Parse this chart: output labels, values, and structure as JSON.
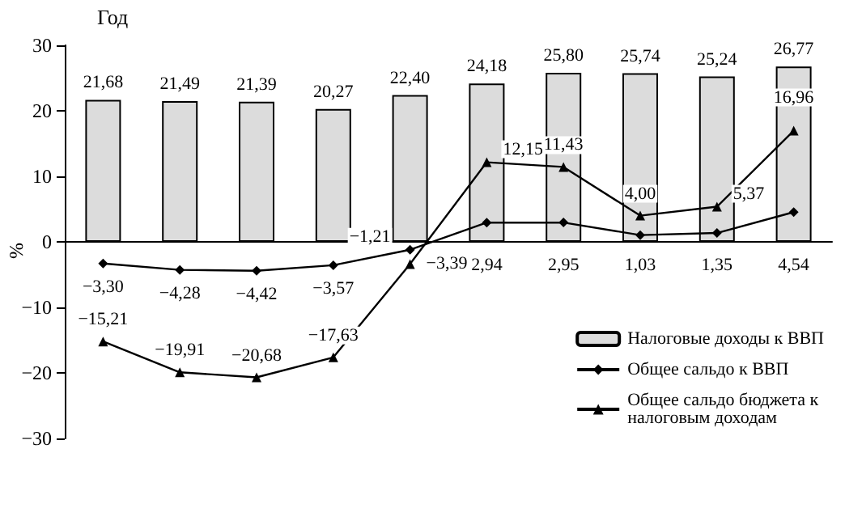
{
  "chart_data": {
    "type": "bar",
    "xlabel": "Год",
    "ylabel": "%",
    "categories": [
      null,
      null,
      null,
      null,
      null,
      null,
      null,
      null,
      null,
      null
    ],
    "series": [
      {
        "name": "Налоговые доходы к ВВП",
        "color": "#dcdcdc",
        "values": [
          21.68,
          21.49,
          21.39,
          20.27,
          22.4,
          24.18,
          25.8,
          25.74,
          25.24,
          26.77
        ],
        "value_labels": [
          "21,68",
          "21,49",
          "21,39",
          "20,27",
          "22,40",
          "24,18",
          "25,80",
          "25,74",
          "25,24",
          "26,77"
        ]
      },
      {
        "name": "Общее сальдо к ВВП",
        "type": "line",
        "marker": "diamond",
        "color": "#000000",
        "values": [
          -3.3,
          -4.28,
          -4.42,
          -3.57,
          -1.21,
          2.94,
          2.95,
          1.03,
          1.35,
          4.54
        ],
        "value_labels": [
          "−3,30",
          "−4,28",
          "−4,42",
          "−3,57",
          "−1,21",
          "2,94",
          "2,95",
          "1,03",
          "1,35",
          "4,54"
        ]
      },
      {
        "name": "Общее сальдо бюджета к налоговым доходам",
        "type": "line",
        "marker": "triangle",
        "color": "#000000",
        "values": [
          -15.21,
          -19.91,
          -20.68,
          -17.63,
          -3.39,
          12.15,
          11.43,
          4.0,
          5.37,
          16.96
        ],
        "value_labels": [
          "−15,21",
          "−19,91",
          "−20,68",
          "−17,63",
          "−3,39",
          "12,15",
          "11,43",
          "4,00",
          "5,37",
          "16,96"
        ]
      }
    ],
    "ylim": [
      -30,
      30
    ],
    "yticks": [
      -30,
      -20,
      -10,
      0,
      10,
      20,
      30
    ],
    "legend": "bottom right",
    "tick_labels": "y"
  }
}
